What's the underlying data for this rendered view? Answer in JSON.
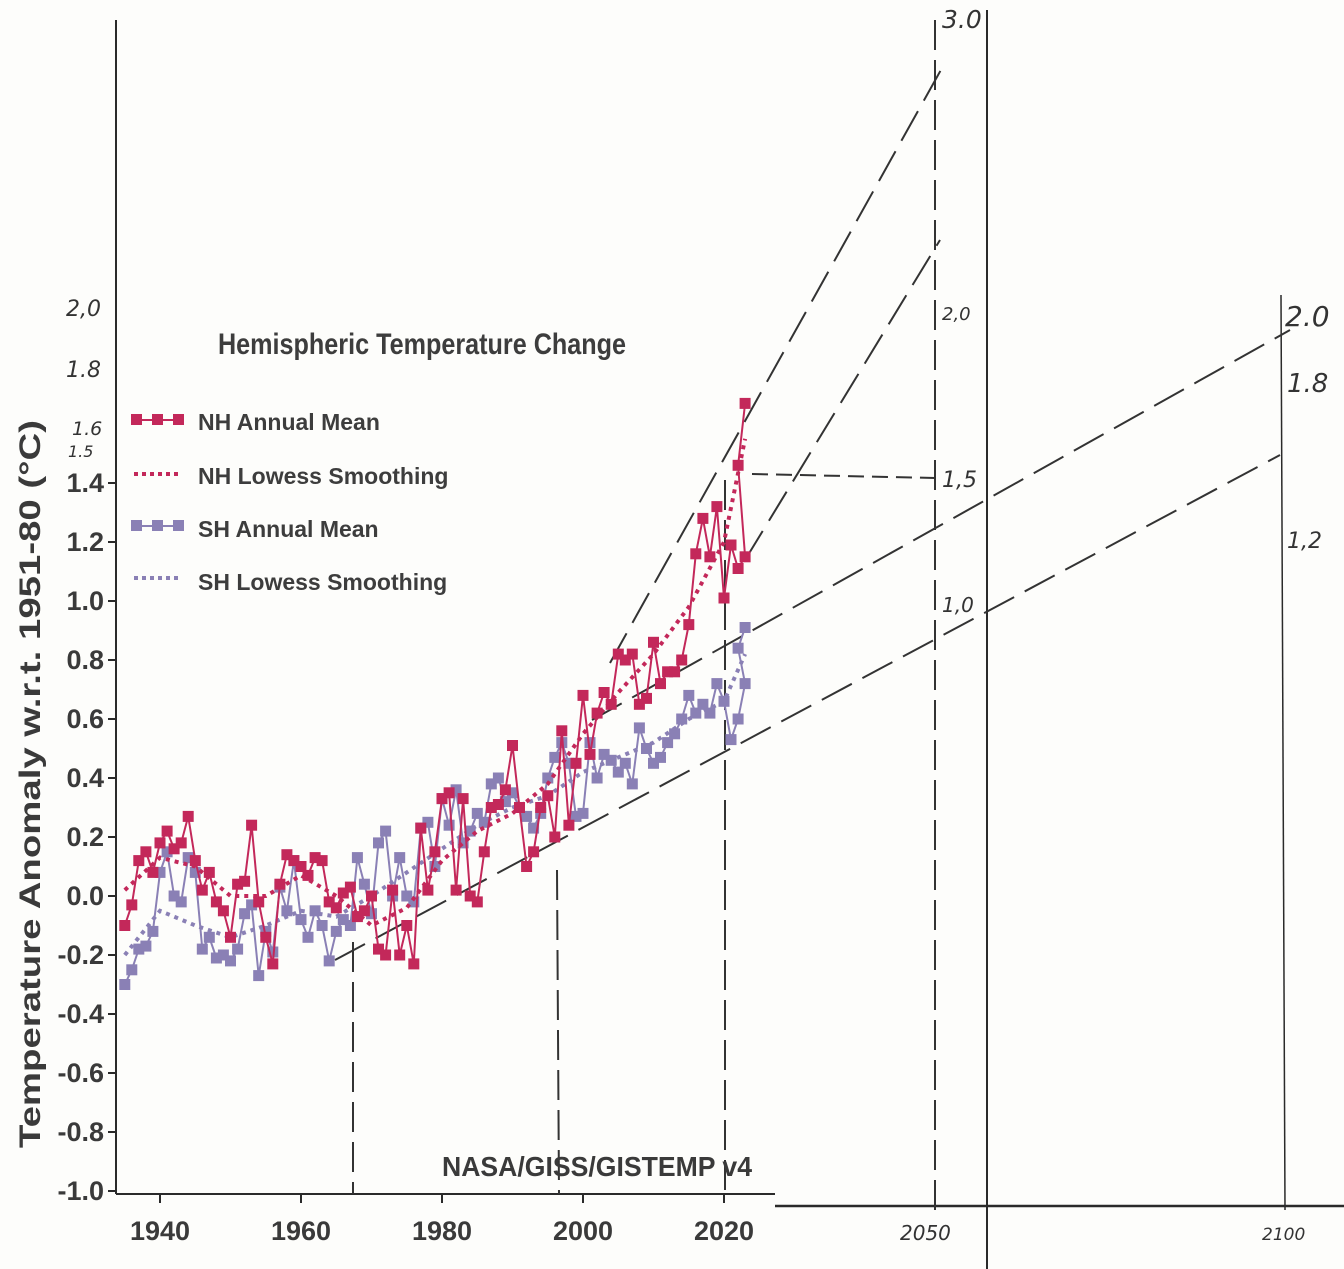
{
  "chart_data": {
    "type": "line",
    "title": "Hemispheric Temperature Change",
    "ylabel": "Temperature Anomaly w.r.t. 1951-80 (°C)",
    "source_label": "NASA/GISS/GISTEMP v4",
    "ylim": [
      -1.0,
      1.6
    ],
    "xlim": [
      1934,
      2023
    ],
    "y_ticks": [
      "-1.0",
      "-0.8",
      "-0.6",
      "-0.4",
      "-0.2",
      "0.0",
      "0.2",
      "0.4",
      "0.6",
      "0.8",
      "1.0",
      "1.2",
      "1.4"
    ],
    "x_ticks": [
      "1940",
      "1960",
      "1980",
      "2000",
      "2020"
    ],
    "handwritten_y_ticks": [
      "2,0",
      "1.8",
      "1.6",
      "1.5"
    ],
    "handwritten_x_ticks": [
      "2050",
      "2100"
    ],
    "handwritten_labels_2050": [
      "3.0",
      "2,0",
      "1,5",
      "1,0"
    ],
    "handwritten_labels_2100": [
      "2.0",
      "1.8",
      "1,2"
    ],
    "colors": {
      "nh": "#c3285a",
      "sh": "#8a80b5"
    },
    "legend": [
      {
        "label": "NH Annual Mean",
        "series": "nh",
        "style": "markers"
      },
      {
        "label": "NH Lowess Smoothing",
        "series": "nh",
        "style": "dotted"
      },
      {
        "label": "SH Annual Mean",
        "series": "sh",
        "style": "markers"
      },
      {
        "label": "SH Lowess Smoothing",
        "series": "sh",
        "style": "dotted"
      }
    ],
    "x": [
      1935,
      1936,
      1937,
      1938,
      1939,
      1940,
      1941,
      1942,
      1943,
      1944,
      1945,
      1946,
      1947,
      1948,
      1949,
      1950,
      1951,
      1952,
      1953,
      1954,
      1955,
      1956,
      1957,
      1958,
      1959,
      1960,
      1961,
      1962,
      1963,
      1964,
      1965,
      1966,
      1967,
      1968,
      1969,
      1970,
      1971,
      1972,
      1973,
      1974,
      1975,
      1976,
      1977,
      1978,
      1979,
      1980,
      1981,
      1982,
      1983,
      1984,
      1985,
      1986,
      1987,
      1988,
      1989,
      1990,
      1991,
      1992,
      1993,
      1994,
      1995,
      1996,
      1997,
      1998,
      1999,
      2000,
      2001,
      2002,
      2003,
      2004,
      2005,
      2006,
      2007,
      2008,
      2009,
      2010,
      2011,
      2012,
      2013,
      2014,
      2015,
      2016,
      2017,
      2018,
      2019,
      2020,
      2021,
      2022,
      2023
    ],
    "series": [
      {
        "name": "NH Annual Mean",
        "values": [
          -0.1,
          -0.03,
          0.12,
          0.15,
          0.08,
          0.18,
          0.22,
          0.16,
          0.18,
          0.27,
          0.12,
          0.02,
          0.08,
          -0.02,
          -0.05,
          -0.14,
          0.04,
          0.05,
          0.24,
          -0.02,
          -0.14,
          -0.23,
          0.04,
          0.14,
          0.12,
          0.1,
          0.07,
          0.13,
          0.12,
          -0.02,
          -0.04,
          0.01,
          0.03,
          -0.07,
          -0.05,
          0.0,
          -0.18,
          -0.2,
          0.02,
          -0.2,
          -0.1,
          -0.23,
          0.23,
          0.02,
          0.15,
          0.33,
          0.35,
          0.02,
          0.33,
          0.0,
          -0.02,
          0.15,
          0.3,
          0.31,
          0.36,
          0.51,
          0.3,
          0.1,
          0.15,
          0.3,
          0.34,
          0.2,
          0.56,
          0.24,
          0.45,
          0.68,
          0.48,
          0.62,
          0.69,
          0.65,
          0.82,
          0.8,
          0.82,
          0.65,
          0.67,
          0.86,
          0.72,
          0.76,
          0.76,
          0.8,
          0.92,
          1.16,
          1.28,
          1.15,
          1.32,
          1.01,
          1.19,
          1.11,
          1.15
        ],
        "extra_points": {
          "x": [
            2022,
            2023
          ],
          "values": [
            1.46,
            1.67
          ]
        }
      },
      {
        "name": "SH Annual Mean",
        "values": [
          -0.3,
          -0.25,
          -0.18,
          -0.17,
          -0.12,
          0.08,
          0.15,
          0.0,
          -0.02,
          0.13,
          0.08,
          -0.18,
          -0.14,
          -0.21,
          -0.2,
          -0.22,
          -0.18,
          -0.06,
          -0.03,
          -0.27,
          -0.12,
          -0.19,
          0.03,
          -0.05,
          0.12,
          -0.08,
          -0.14,
          -0.05,
          -0.1,
          -0.22,
          -0.12,
          -0.08,
          -0.1,
          0.13,
          0.04,
          -0.06,
          0.18,
          0.22,
          0.0,
          0.13,
          0.0,
          -0.02,
          0.23,
          0.25,
          0.1,
          0.33,
          0.24,
          0.36,
          0.18,
          0.22,
          0.28,
          0.25,
          0.38,
          0.4,
          0.32,
          0.35,
          0.3,
          0.27,
          0.23,
          0.28,
          0.4,
          0.47,
          0.52,
          0.45,
          0.27,
          0.28,
          0.52,
          0.4,
          0.48,
          0.46,
          0.42,
          0.45,
          0.38,
          0.57,
          0.5,
          0.45,
          0.47,
          0.52,
          0.55,
          0.6,
          0.68,
          0.62,
          0.65,
          0.62,
          0.72,
          0.66,
          0.53,
          0.6,
          0.72
        ],
        "extra_points": {
          "x": [
            2022,
            2023
          ],
          "values": [
            0.84,
            0.91
          ]
        }
      },
      {
        "name": "NH Lowess Smoothing",
        "points": [
          [
            1935,
            0.02
          ],
          [
            1940,
            0.13
          ],
          [
            1945,
            0.1
          ],
          [
            1950,
            0.0
          ],
          [
            1955,
            0.0
          ],
          [
            1960,
            0.07
          ],
          [
            1965,
            0.0
          ],
          [
            1970,
            -0.1
          ],
          [
            1975,
            -0.04
          ],
          [
            1980,
            0.12
          ],
          [
            1985,
            0.22
          ],
          [
            1990,
            0.28
          ],
          [
            1995,
            0.38
          ],
          [
            2000,
            0.55
          ],
          [
            2005,
            0.69
          ],
          [
            2010,
            0.82
          ],
          [
            2015,
            0.98
          ],
          [
            2020,
            1.2
          ],
          [
            2023,
            1.55
          ]
        ]
      },
      {
        "name": "SH Lowess Smoothing",
        "points": [
          [
            1935,
            -0.2
          ],
          [
            1940,
            -0.05
          ],
          [
            1945,
            -0.1
          ],
          [
            1950,
            -0.14
          ],
          [
            1955,
            -0.1
          ],
          [
            1960,
            -0.05
          ],
          [
            1965,
            -0.07
          ],
          [
            1970,
            0.0
          ],
          [
            1975,
            0.08
          ],
          [
            1980,
            0.16
          ],
          [
            1985,
            0.24
          ],
          [
            1990,
            0.3
          ],
          [
            1995,
            0.34
          ],
          [
            2000,
            0.42
          ],
          [
            2005,
            0.47
          ],
          [
            2010,
            0.52
          ],
          [
            2015,
            0.6
          ],
          [
            2020,
            0.66
          ],
          [
            2023,
            0.82
          ]
        ]
      }
    ]
  }
}
